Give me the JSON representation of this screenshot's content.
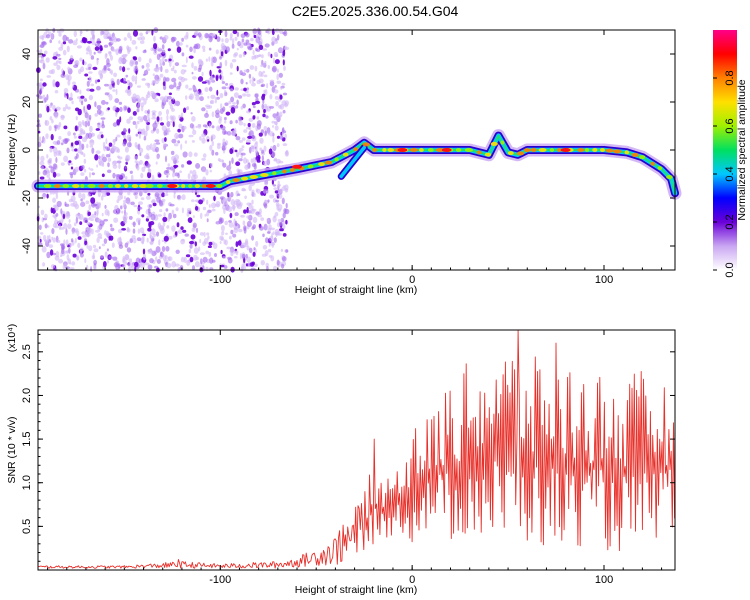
{
  "title": "C2E5.2025.336.00.54.G04",
  "chart_data": [
    {
      "type": "heatmap",
      "title": "",
      "xlabel": "Height of straight line (km)",
      "ylabel": "Frequency (Hz)",
      "xlim": [
        -195,
        137
      ],
      "ylim": [
        -50,
        50
      ],
      "xticks": [
        -100,
        0,
        100
      ],
      "yticks": [
        -40,
        -20,
        0,
        20,
        40
      ],
      "colorbar": {
        "label": "Normalized spectral amplitude",
        "range": [
          0.0,
          1.0
        ],
        "ticks": [
          "0.0",
          "0.2",
          "0.4",
          "0.6",
          "0.8"
        ],
        "colors": [
          "#ffffff",
          "#c9a6f2",
          "#6a00d8",
          "#0000ff",
          "#00c8ff",
          "#00e060",
          "#a0f000",
          "#ffe000",
          "#ff8000",
          "#ff0000",
          "#ff0088"
        ]
      },
      "ridge": {
        "x": [
          -195,
          -100,
          -95,
          -60,
          -42,
          -30,
          -25,
          -20,
          0,
          30,
          35,
          40,
          45,
          50,
          55,
          60,
          100,
          112,
          120,
          130,
          135,
          137
        ],
        "y": [
          -15,
          -15,
          -13,
          -8,
          -5,
          0,
          3,
          0,
          0,
          0,
          -1,
          -2,
          6,
          -1,
          -2,
          0,
          0,
          -1,
          -3,
          -8,
          -12,
          -18
        ]
      },
      "branch": {
        "x": [
          -37,
          -33,
          -29,
          -25
        ],
        "y": [
          -11,
          -7,
          -3,
          1
        ]
      },
      "peaks_red": [
        {
          "x": -125,
          "y": -15
        },
        {
          "x": -105,
          "y": -15
        },
        {
          "x": -60,
          "y": -7
        },
        {
          "x": -5,
          "y": 0
        },
        {
          "x": 18,
          "y": 0
        },
        {
          "x": 80,
          "y": 0
        }
      ]
    },
    {
      "type": "line",
      "title": "",
      "xlabel": "Height of straight line (km)",
      "ylabel": "SNR (10 * v/v)",
      "y_multiplier": "(x10⁴)",
      "xlim": [
        -195,
        137
      ],
      "ylim": [
        0,
        2.75
      ],
      "xticks": [
        -100,
        0,
        100
      ],
      "yticks": [
        "0.5",
        "1.0",
        "1.5",
        "2.0",
        "2.5"
      ],
      "color": "#e8302a",
      "envelope": {
        "x": [
          -195,
          -150,
          -120,
          -100,
          -70,
          -60,
          -50,
          -40,
          -30,
          -20,
          -10,
          -5,
          0,
          10,
          20,
          30,
          40,
          50,
          60,
          70,
          80,
          90,
          100,
          110,
          120,
          130,
          137
        ],
        "y_low": [
          0.02,
          0.02,
          0.02,
          0.02,
          0.02,
          0.03,
          0.05,
          0.05,
          0.1,
          0.3,
          0.4,
          0.4,
          0.3,
          0.5,
          0.3,
          0.4,
          0.3,
          0.25,
          0.3,
          0.2,
          0.2,
          0.3,
          0.2,
          0.2,
          0.15,
          0.4,
          0.5
        ],
        "y_high": [
          0.05,
          0.05,
          0.1,
          0.07,
          0.1,
          0.15,
          0.25,
          0.4,
          0.7,
          1.2,
          1.1,
          1.4,
          1.6,
          1.8,
          2.2,
          2.4,
          2.5,
          2.6,
          2.4,
          2.5,
          2.4,
          2.3,
          2.3,
          2.2,
          2.3,
          2.2,
          2.0
        ]
      },
      "peaks": [
        {
          "x": -122,
          "y": 0.12
        },
        {
          "x": -38,
          "y": 0.45
        },
        {
          "x": -20,
          "y": 1.5
        },
        {
          "x": 2,
          "y": 1.62
        },
        {
          "x": 55,
          "y": 2.75
        },
        {
          "x": 75,
          "y": 2.6
        }
      ]
    }
  ]
}
